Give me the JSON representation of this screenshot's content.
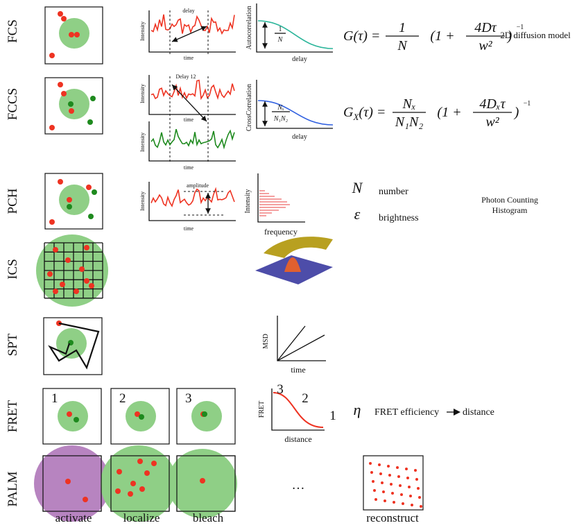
{
  "rows": [
    {
      "label": "FCS",
      "plot": {
        "top": "delay",
        "y_label": "Intensity",
        "x_label": "time"
      },
      "corr": {
        "y_label": "Autocorrelation",
        "x_label": "delay",
        "num": "1",
        "den": "N"
      },
      "equation": {
        "lhs": "G(τ) =",
        "num": "1",
        "den": "N",
        "open": "(1 +",
        "num2": "4Dτ",
        "den2": "w²",
        "close": ")",
        "exp": "−1"
      },
      "note": "2D diffusion model"
    },
    {
      "label": "FCCS",
      "plot": {
        "top": "Delay 12",
        "y_label": "Intensity",
        "x_label": "time",
        "y_label2": "Intensity",
        "x_label2": "time"
      },
      "corr": {
        "y_label": "CrossCorrelation",
        "x_label": "delay",
        "num": "Nₓ",
        "den": "N₁N₂"
      },
      "equation": {
        "lhs_g": "G",
        "lhs_sub": "X",
        "lhs_rest": "(τ) =",
        "num": "Nₓ",
        "den": "N₁N₂",
        "open": "(1 +",
        "num2": "4Dₓτ",
        "den2": "w²",
        "close": ")",
        "exp": "−1"
      }
    },
    {
      "label": "PCH",
      "plot": {
        "top": "amplitude",
        "y_label": "Intensity",
        "x_label": "time"
      },
      "hist": {
        "y_label": "Intensity",
        "x_label": "frequency"
      },
      "params": [
        {
          "symbol": "N",
          "text": "number"
        },
        {
          "symbol": "ε",
          "text": "brightness"
        }
      ],
      "note": [
        "Photon Counting",
        "Histogram"
      ]
    },
    {
      "label": "ICS"
    },
    {
      "label": "SPT",
      "msd": {
        "y_label": "MSD",
        "x_label": "time"
      }
    },
    {
      "label": "FRET",
      "boxes": [
        "1",
        "2",
        "3"
      ],
      "curve": {
        "y_label": "FRET",
        "x_label": "distance",
        "marks": [
          "3",
          "2",
          "1"
        ]
      },
      "symbol": "η",
      "text": "FRET efficiency",
      "result": "distance"
    },
    {
      "label": "PALM",
      "steps": [
        "activate",
        "localize",
        "bleach"
      ],
      "ellipsis": "…",
      "final": "reconstruct"
    }
  ]
}
